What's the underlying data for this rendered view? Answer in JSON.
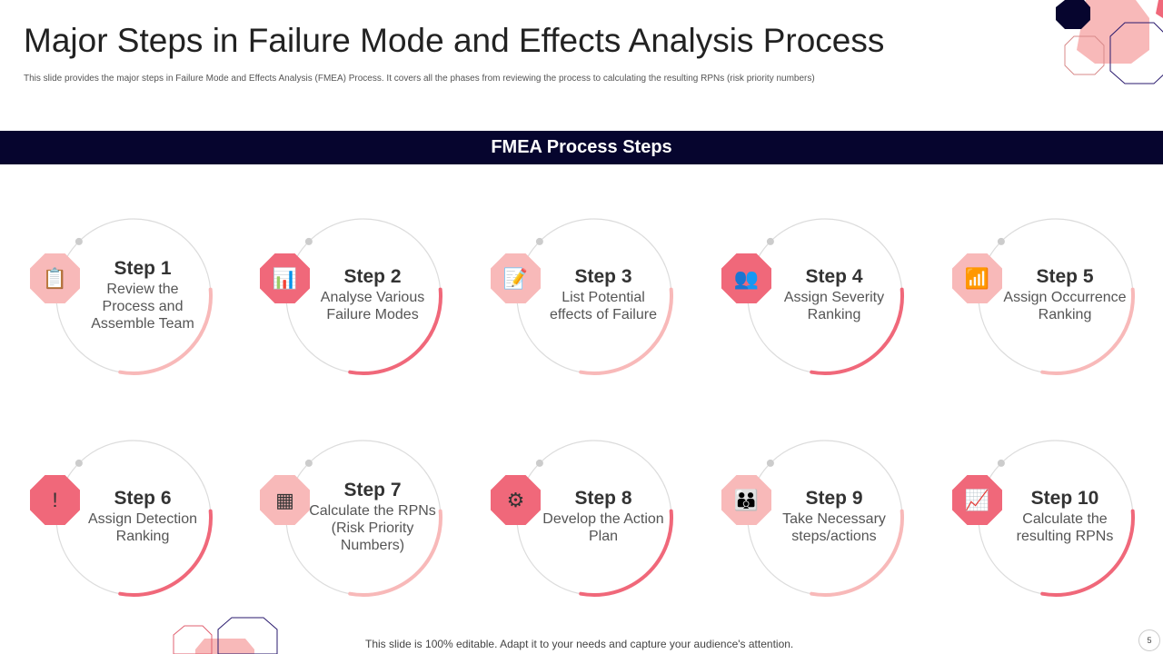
{
  "title": "Major Steps in Failure Mode and Effects Analysis Process",
  "subtitle": "This slide provides the major steps in Failure Mode and Effects Analysis (FMEA) Process. It covers all the phases from reviewing the process to calculating the resulting RPNs  (risk priority numbers)",
  "banner": "FMEA Process Steps",
  "colors": {
    "navy": "#06052e",
    "light_pink": "#f8b9b9",
    "dark_pink": "#f0687a",
    "grey": "#dcdcdc"
  },
  "steps": [
    {
      "label": "Step 1",
      "text": "Review the Process and Assemble Team",
      "icon": "clipboard-search-icon",
      "tone": "light"
    },
    {
      "label": "Step 2",
      "text": "Analyse Various Failure Modes",
      "icon": "presentation-analysis-icon",
      "tone": "dark"
    },
    {
      "label": "Step 3",
      "text": "List Potential effects of Failure",
      "icon": "document-edit-icon",
      "tone": "light"
    },
    {
      "label": "Step 4",
      "text": "Assign Severity Ranking",
      "icon": "team-discussion-icon",
      "tone": "dark"
    },
    {
      "label": "Step 5",
      "text": "Assign Occurrence Ranking",
      "icon": "bar-chart-icon",
      "tone": "light"
    },
    {
      "label": "Step 6",
      "text": "Assign Detection Ranking",
      "icon": "alert-icon",
      "tone": "dark"
    },
    {
      "label": "Step 7",
      "text": "Calculate the RPNs (Risk Priority Numbers)",
      "icon": "calculator-icon",
      "tone": "light"
    },
    {
      "label": "Step 8",
      "text": "Develop the Action Plan",
      "icon": "brain-gear-icon",
      "tone": "dark"
    },
    {
      "label": "Step 9",
      "text": "Take Necessary steps/actions",
      "icon": "people-icon",
      "tone": "light"
    },
    {
      "label": "Step 10",
      "text": "Calculate the resulting RPNs",
      "icon": "report-chart-icon",
      "tone": "dark"
    }
  ],
  "footer": "This slide is 100% editable. Adapt it to your needs and capture your audience's attention.",
  "page_number": "5"
}
